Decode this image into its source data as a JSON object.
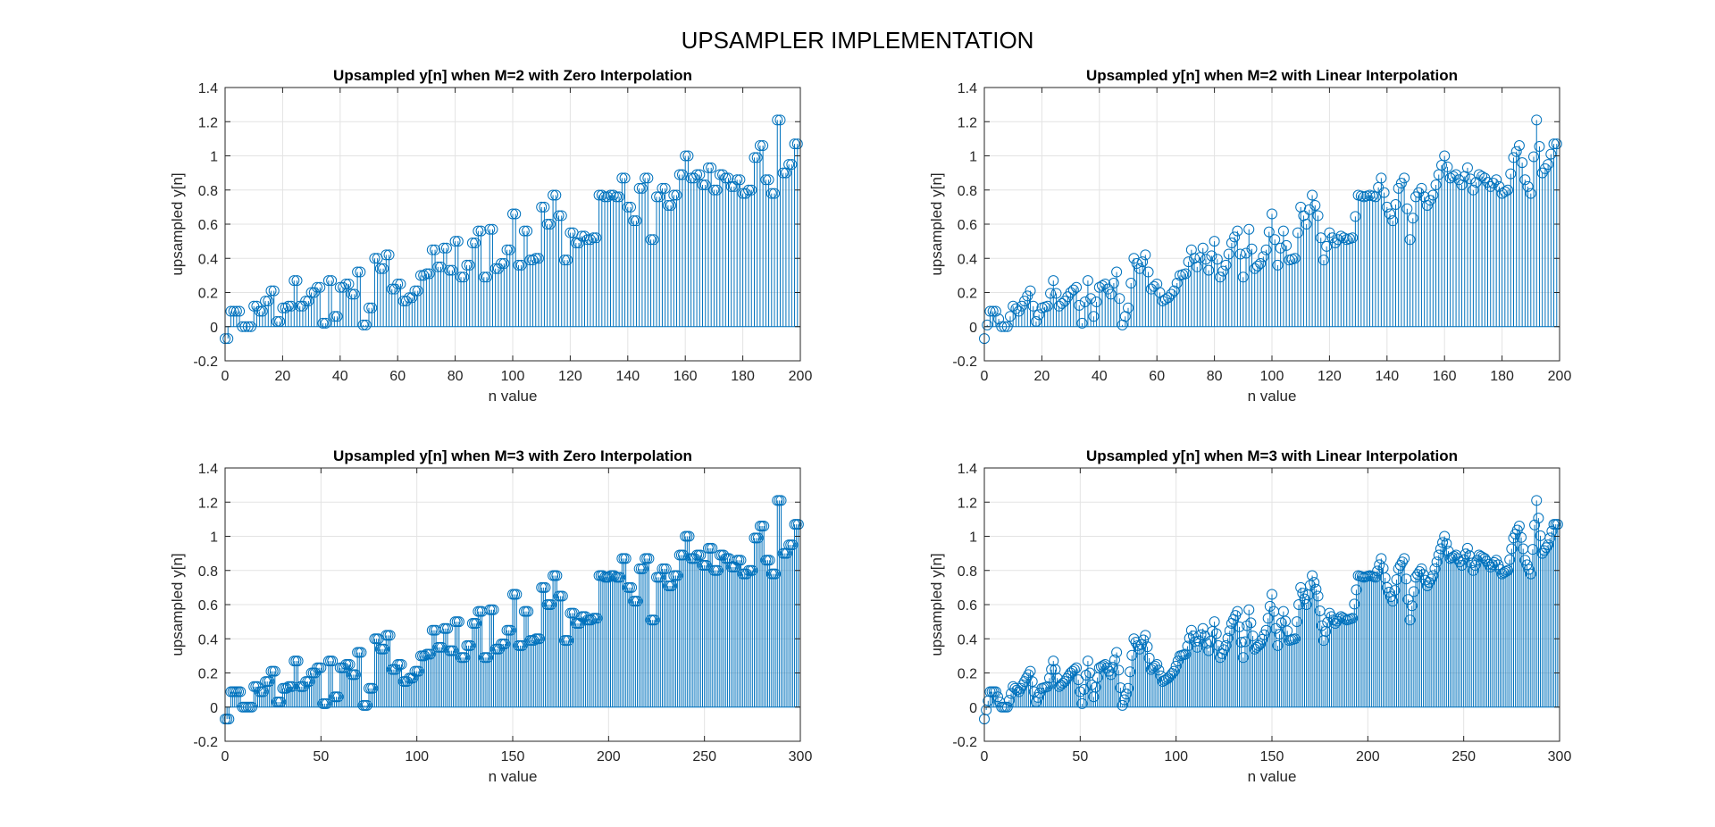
{
  "figure_title": "UPSAMPLER IMPLEMENTATION",
  "colors": {
    "stem": "#0072BD",
    "grid": "#e3e3e3",
    "axis": "#262626"
  },
  "chart_data": [
    {
      "type": "stem",
      "title": "Upsampled y[n] when M=2 with Zero Interpolation",
      "xlabel": "n value",
      "ylabel": "upsampled y[n]",
      "xlim": [
        0,
        200
      ],
      "ylim": [
        -0.2,
        1.4
      ],
      "xticks": [
        0,
        20,
        40,
        60,
        80,
        100,
        120,
        140,
        160,
        180,
        200
      ],
      "xtick_labels": [
        "0",
        "20",
        "40",
        "60",
        "80",
        "100",
        "120",
        "140",
        "160",
        "180",
        "200"
      ],
      "yticks": [
        -0.2,
        0,
        0.2,
        0.4,
        0.6,
        0.8,
        1,
        1.2,
        1.4
      ],
      "ytick_labels": [
        "-0.2",
        "0",
        "0.2",
        "0.4",
        "0.6",
        "0.8",
        "1",
        "1.2",
        "1.4"
      ],
      "grid": true,
      "marker": "circle",
      "factor": 2,
      "interp": "zero",
      "x": [
        0,
        199
      ],
      "source": [
        -0.07,
        0.09,
        0.09,
        0.0,
        0.0,
        0.12,
        0.09,
        0.15,
        0.21,
        0.03,
        0.11,
        0.12,
        0.27,
        0.12,
        0.15,
        0.2,
        0.23,
        0.02,
        0.27,
        0.06,
        0.23,
        0.25,
        0.19,
        0.32,
        0.01,
        0.11,
        0.4,
        0.34,
        0.42,
        0.22,
        0.25,
        0.15,
        0.17,
        0.21,
        0.3,
        0.31,
        0.45,
        0.35,
        0.46,
        0.33,
        0.5,
        0.29,
        0.36,
        0.49,
        0.56,
        0.29,
        0.57,
        0.34,
        0.37,
        0.45,
        0.66,
        0.36,
        0.56,
        0.39,
        0.4,
        0.7,
        0.6,
        0.77,
        0.65,
        0.39,
        0.55,
        0.49,
        0.53,
        0.51,
        0.52,
        0.77,
        0.76,
        0.77,
        0.76,
        0.87,
        0.7,
        0.62,
        0.81,
        0.87,
        0.51,
        0.76,
        0.81,
        0.71,
        0.77,
        0.89,
        1.0,
        0.87,
        0.89,
        0.83,
        0.93,
        0.8,
        0.89,
        0.87,
        0.82,
        0.86,
        0.78,
        0.8,
        0.99,
        1.06,
        0.86,
        0.78,
        1.21,
        0.9,
        0.95,
        1.07
      ]
    },
    {
      "type": "stem",
      "title": "Upsampled y[n] when M=2 with Linear Interpolation",
      "xlabel": "n value",
      "ylabel": "upsampled y[n]",
      "xlim": [
        0,
        200
      ],
      "ylim": [
        -0.2,
        1.4
      ],
      "xticks": [
        0,
        20,
        40,
        60,
        80,
        100,
        120,
        140,
        160,
        180,
        200
      ],
      "xtick_labels": [
        "0",
        "20",
        "40",
        "60",
        "80",
        "100",
        "120",
        "140",
        "160",
        "180",
        "200"
      ],
      "yticks": [
        -0.2,
        0,
        0.2,
        0.4,
        0.6,
        0.8,
        1,
        1.2,
        1.4
      ],
      "ytick_labels": [
        "-0.2",
        "0",
        "0.2",
        "0.4",
        "0.6",
        "0.8",
        "1",
        "1.2",
        "1.4"
      ],
      "grid": true,
      "marker": "circle",
      "factor": 2,
      "interp": "linear",
      "x": [
        0,
        199
      ],
      "source": [
        -0.07,
        0.09,
        0.09,
        0.0,
        0.0,
        0.12,
        0.09,
        0.15,
        0.21,
        0.03,
        0.11,
        0.12,
        0.27,
        0.12,
        0.15,
        0.2,
        0.23,
        0.02,
        0.27,
        0.06,
        0.23,
        0.25,
        0.19,
        0.32,
        0.01,
        0.11,
        0.4,
        0.34,
        0.42,
        0.22,
        0.25,
        0.15,
        0.17,
        0.21,
        0.3,
        0.31,
        0.45,
        0.35,
        0.46,
        0.33,
        0.5,
        0.29,
        0.36,
        0.49,
        0.56,
        0.29,
        0.57,
        0.34,
        0.37,
        0.45,
        0.66,
        0.36,
        0.56,
        0.39,
        0.4,
        0.7,
        0.6,
        0.77,
        0.65,
        0.39,
        0.55,
        0.49,
        0.53,
        0.51,
        0.52,
        0.77,
        0.76,
        0.77,
        0.76,
        0.87,
        0.7,
        0.62,
        0.81,
        0.87,
        0.51,
        0.76,
        0.81,
        0.71,
        0.77,
        0.89,
        1.0,
        0.87,
        0.89,
        0.83,
        0.93,
        0.8,
        0.89,
        0.87,
        0.82,
        0.86,
        0.78,
        0.8,
        0.99,
        1.06,
        0.86,
        0.78,
        1.21,
        0.9,
        0.95,
        1.07
      ]
    },
    {
      "type": "stem",
      "title": "Upsampled y[n] when M=3 with Zero Interpolation",
      "xlabel": "n value",
      "ylabel": "upsampled y[n]",
      "xlim": [
        0,
        300
      ],
      "ylim": [
        -0.2,
        1.4
      ],
      "xticks": [
        0,
        50,
        100,
        150,
        200,
        250,
        300
      ],
      "xtick_labels": [
        "0",
        "50",
        "100",
        "150",
        "200",
        "250",
        "300"
      ],
      "yticks": [
        -0.2,
        0,
        0.2,
        0.4,
        0.6,
        0.8,
        1,
        1.2,
        1.4
      ],
      "ytick_labels": [
        "-0.2",
        "0",
        "0.2",
        "0.4",
        "0.6",
        "0.8",
        "1",
        "1.2",
        "1.4"
      ],
      "grid": true,
      "marker": "circle",
      "factor": 3,
      "interp": "zero",
      "x": [
        0,
        299
      ],
      "source": [
        -0.07,
        0.09,
        0.09,
        0.0,
        0.0,
        0.12,
        0.09,
        0.15,
        0.21,
        0.03,
        0.11,
        0.12,
        0.27,
        0.12,
        0.15,
        0.2,
        0.23,
        0.02,
        0.27,
        0.06,
        0.23,
        0.25,
        0.19,
        0.32,
        0.01,
        0.11,
        0.4,
        0.34,
        0.42,
        0.22,
        0.25,
        0.15,
        0.17,
        0.21,
        0.3,
        0.31,
        0.45,
        0.35,
        0.46,
        0.33,
        0.5,
        0.29,
        0.36,
        0.49,
        0.56,
        0.29,
        0.57,
        0.34,
        0.37,
        0.45,
        0.66,
        0.36,
        0.56,
        0.39,
        0.4,
        0.7,
        0.6,
        0.77,
        0.65,
        0.39,
        0.55,
        0.49,
        0.53,
        0.51,
        0.52,
        0.77,
        0.76,
        0.77,
        0.76,
        0.87,
        0.7,
        0.62,
        0.81,
        0.87,
        0.51,
        0.76,
        0.81,
        0.71,
        0.77,
        0.89,
        1.0,
        0.87,
        0.89,
        0.83,
        0.93,
        0.8,
        0.89,
        0.87,
        0.82,
        0.86,
        0.78,
        0.8,
        0.99,
        1.06,
        0.86,
        0.78,
        1.21,
        0.9,
        0.95,
        1.07
      ]
    },
    {
      "type": "stem",
      "title": "Upsampled y[n] when M=3 with Linear Interpolation",
      "xlabel": "n value",
      "ylabel": "upsampled y[n]",
      "xlim": [
        0,
        300
      ],
      "ylim": [
        -0.2,
        1.4
      ],
      "xticks": [
        0,
        50,
        100,
        150,
        200,
        250,
        300
      ],
      "xtick_labels": [
        "0",
        "50",
        "100",
        "150",
        "200",
        "250",
        "300"
      ],
      "yticks": [
        -0.2,
        0,
        0.2,
        0.4,
        0.6,
        0.8,
        1,
        1.2,
        1.4
      ],
      "ytick_labels": [
        "-0.2",
        "0",
        "0.2",
        "0.4",
        "0.6",
        "0.8",
        "1",
        "1.2",
        "1.4"
      ],
      "grid": true,
      "marker": "circle",
      "factor": 3,
      "interp": "linear",
      "x": [
        0,
        299
      ],
      "source": [
        -0.07,
        0.09,
        0.09,
        0.0,
        0.0,
        0.12,
        0.09,
        0.15,
        0.21,
        0.03,
        0.11,
        0.12,
        0.27,
        0.12,
        0.15,
        0.2,
        0.23,
        0.02,
        0.27,
        0.06,
        0.23,
        0.25,
        0.19,
        0.32,
        0.01,
        0.11,
        0.4,
        0.34,
        0.42,
        0.22,
        0.25,
        0.15,
        0.17,
        0.21,
        0.3,
        0.31,
        0.45,
        0.35,
        0.46,
        0.33,
        0.5,
        0.29,
        0.36,
        0.49,
        0.56,
        0.29,
        0.57,
        0.34,
        0.37,
        0.45,
        0.66,
        0.36,
        0.56,
        0.39,
        0.4,
        0.7,
        0.6,
        0.77,
        0.65,
        0.39,
        0.55,
        0.49,
        0.53,
        0.51,
        0.52,
        0.77,
        0.76,
        0.77,
        0.76,
        0.87,
        0.7,
        0.62,
        0.81,
        0.87,
        0.51,
        0.76,
        0.81,
        0.71,
        0.77,
        0.89,
        1.0,
        0.87,
        0.89,
        0.83,
        0.93,
        0.8,
        0.89,
        0.87,
        0.82,
        0.86,
        0.78,
        0.8,
        0.99,
        1.06,
        0.86,
        0.78,
        1.21,
        0.9,
        0.95,
        1.07
      ]
    }
  ]
}
